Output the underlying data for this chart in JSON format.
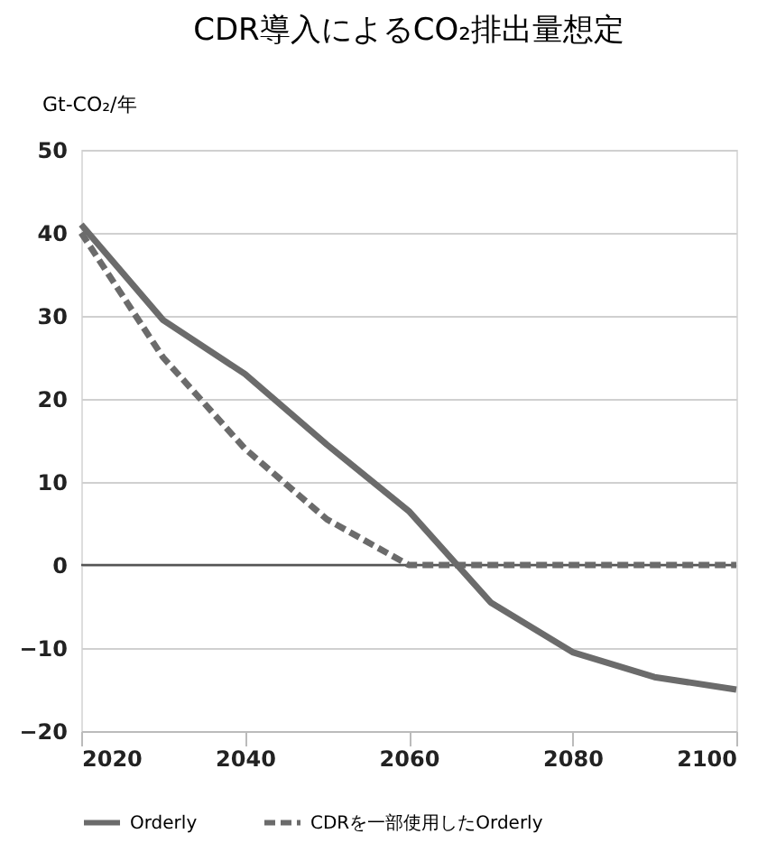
{
  "chart_data": {
    "type": "line",
    "title": "CDR導入によるCO₂排出量想定",
    "ylabel": "Gt-CO₂/年",
    "x": [
      2020,
      2030,
      2040,
      2050,
      2060,
      2070,
      2080,
      2090,
      2100
    ],
    "series": [
      {
        "name": "Orderly",
        "color": "#6b6b6b",
        "line_style": "solid",
        "values": [
          41,
          29.5,
          23,
          14.5,
          6.5,
          -4.5,
          -10.5,
          -13.5,
          -15
        ]
      },
      {
        "name": "CDRを一部使用したOrderly",
        "color": "#6b6b6b",
        "line_style": "dashed",
        "values": [
          40,
          25,
          14,
          5.5,
          0,
          0,
          0,
          0,
          0
        ]
      }
    ],
    "xlim": [
      2020,
      2100
    ],
    "xticks": [
      2020,
      2040,
      2060,
      2080,
      2100
    ],
    "ylim": [
      -20,
      50
    ],
    "yticks": [
      -20,
      -10,
      0,
      10,
      20,
      30,
      40,
      50
    ],
    "ref_lines": [
      {
        "axis": "y",
        "value": 0,
        "color": "#555555"
      }
    ],
    "grid": "y",
    "legend": "bottom",
    "marker": "none"
  }
}
